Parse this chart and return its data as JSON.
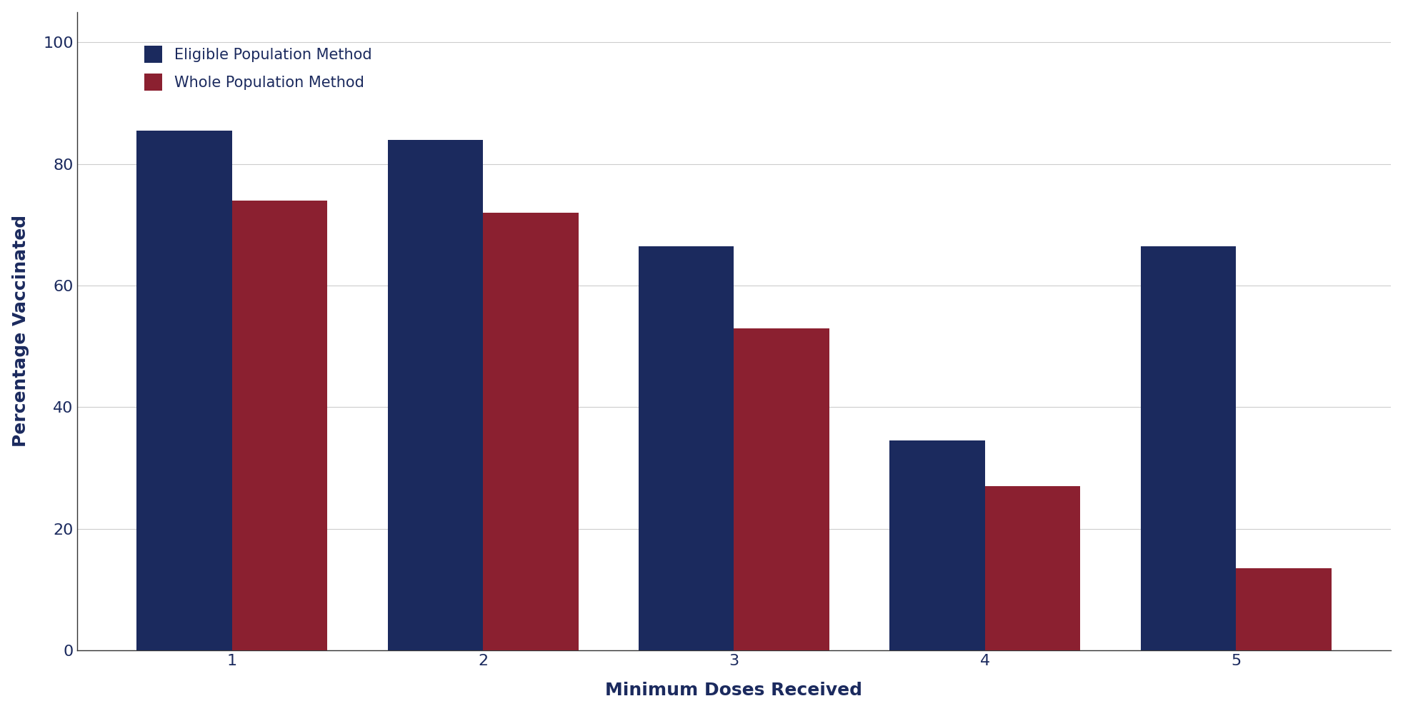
{
  "categories": [
    1,
    2,
    3,
    4,
    5
  ],
  "eligible_values": [
    85.5,
    84.0,
    66.5,
    34.5,
    66.5
  ],
  "whole_values": [
    74.0,
    72.0,
    53.0,
    27.0,
    13.5
  ],
  "eligible_color": "#1B2A5E",
  "whole_color": "#8B2030",
  "eligible_label": "Eligible Population Method",
  "whole_label": "Whole Population Method",
  "xlabel": "Minimum Doses Received",
  "ylabel": "Percentage Vaccinated",
  "ylim": [
    0,
    105
  ],
  "yticks": [
    0,
    20,
    40,
    60,
    80,
    100
  ],
  "background_color": "#ffffff",
  "grid_color": "#cccccc",
  "bar_width": 0.38,
  "label_fontsize": 18,
  "tick_fontsize": 16,
  "legend_fontsize": 15,
  "text_color": "#1B2A5E"
}
